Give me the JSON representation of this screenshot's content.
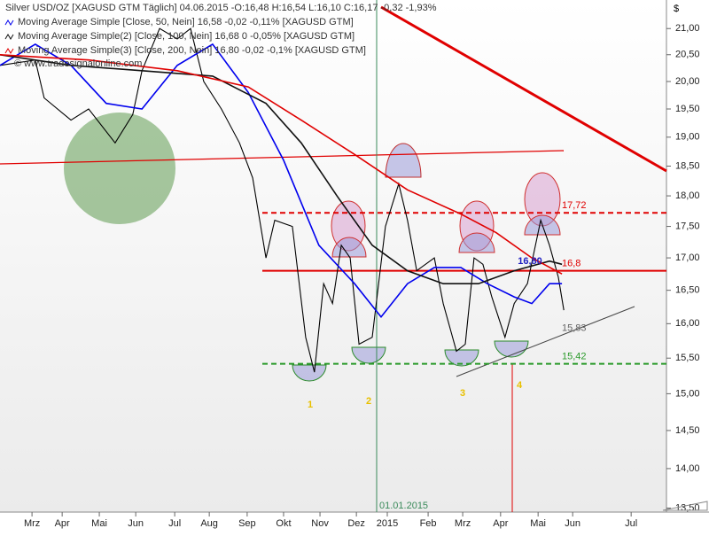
{
  "chart_data": {
    "type": "line",
    "title": "Silver USD/OZ [XAGUSD GTM  Täglich] 04.06.2015 -O:16,48 H:16,54 L:16,10 C:16,17 -0,32 -1,93%",
    "watermark": "© www.tradesignalonline.com",
    "currency": "$",
    "log_scale": true,
    "xlim": [
      0,
      18.12
    ],
    "ylim": [
      13.45,
      21.56
    ],
    "yticks": [
      {
        "value": 21,
        "label": "21,00"
      },
      {
        "value": 20.5,
        "label": "20,50"
      },
      {
        "value": 20,
        "label": "20,00"
      },
      {
        "value": 19.5,
        "label": "19,50"
      },
      {
        "value": 19,
        "label": "19,00"
      },
      {
        "value": 18.5,
        "label": "18,50"
      },
      {
        "value": 18,
        "label": "18,00"
      },
      {
        "value": 17.5,
        "label": "17,50"
      },
      {
        "value": 17,
        "label": "17,00"
      },
      {
        "value": 16.5,
        "label": "16,50"
      },
      {
        "value": 16,
        "label": "16,00"
      },
      {
        "value": 15.5,
        "label": "15,50"
      },
      {
        "value": 15,
        "label": "15,00"
      },
      {
        "value": 14.5,
        "label": "14,50"
      },
      {
        "value": 14,
        "label": "14,00"
      },
      {
        "value": 13.5,
        "label": "13,50"
      }
    ],
    "xticks": [
      {
        "value": 0.87,
        "label": "Mrz"
      },
      {
        "value": 1.69,
        "label": "Apr"
      },
      {
        "value": 2.7,
        "label": "Mai"
      },
      {
        "value": 3.69,
        "label": "Jun"
      },
      {
        "value": 4.75,
        "label": "Jul"
      },
      {
        "value": 5.69,
        "label": "Aug"
      },
      {
        "value": 6.72,
        "label": "Sep"
      },
      {
        "value": 7.71,
        "label": "Okt"
      },
      {
        "value": 8.7,
        "label": "Nov"
      },
      {
        "value": 9.69,
        "label": "Dez"
      },
      {
        "value": 10.53,
        "label": "2015"
      },
      {
        "value": 11.64,
        "label": "Feb"
      },
      {
        "value": 12.58,
        "label": "Mrz"
      },
      {
        "value": 13.61,
        "label": "Apr"
      },
      {
        "value": 14.63,
        "label": "Mai"
      },
      {
        "value": 15.57,
        "label": "Jun"
      },
      {
        "value": 17.16,
        "label": "Jul"
      }
    ],
    "series": [
      {
        "color": "#000000",
        "x": [
          0,
          0.96,
          1.2,
          1.93,
          2.41,
          3.13,
          3.61,
          3.86,
          4.34,
          4.82,
          5.18,
          5.54,
          6.02,
          6.51,
          6.87,
          7.23,
          7.47,
          7.95,
          8.31,
          8.55,
          8.8,
          9.04,
          9.28,
          9.52,
          9.76,
          10.12,
          10.48,
          10.84,
          11.08,
          11.33,
          11.81,
          12.05,
          12.41,
          12.65,
          12.89,
          13.13,
          13.37,
          13.73,
          13.98,
          14.34,
          14.7,
          14.94,
          15.18,
          15.33
        ],
        "values": [
          20.3,
          20.4,
          19.7,
          19.3,
          19.5,
          18.9,
          19.4,
          20.2,
          21.0,
          20.8,
          21.0,
          20.0,
          19.5,
          18.9,
          18.3,
          17.0,
          17.6,
          17.5,
          15.8,
          15.3,
          16.6,
          16.3,
          17.2,
          17.0,
          15.7,
          15.8,
          17.5,
          18.2,
          17.6,
          16.8,
          17.0,
          16.3,
          15.6,
          15.7,
          17.0,
          16.9,
          16.4,
          15.8,
          16.3,
          16.6,
          17.6,
          17.2,
          16.7,
          16.2
        ]
      },
      {
        "name": "Moving Average Simple [Close, 50, Nein] 16,58 -0,02 -0,11% [XAGUSD GTM]",
        "color": "#0000ee",
        "x": [
          0,
          0.96,
          1.93,
          2.89,
          3.86,
          4.82,
          5.78,
          6.75,
          7.71,
          8.67,
          9.64,
          10.36,
          11.08,
          11.81,
          12.53,
          13.25,
          13.98,
          14.46,
          14.94,
          15.28
        ],
        "values": [
          20.3,
          20.7,
          20.3,
          19.6,
          19.5,
          20.3,
          20.7,
          19.8,
          18.6,
          17.2,
          16.6,
          16.1,
          16.6,
          16.85,
          16.85,
          16.6,
          16.4,
          16.3,
          16.6,
          16.6
        ]
      },
      {
        "name": "Moving Average Simple(2) [Close, 100, Nein] 16,68 0 -0,05% [XAGUSD GTM]",
        "color": "#111111",
        "x": [
          0,
          1.93,
          3.86,
          5.78,
          7.23,
          8.19,
          9.16,
          10.12,
          11.08,
          12.05,
          13.01,
          13.98,
          14.94,
          15.28
        ],
        "values": [
          20.5,
          20.3,
          20.2,
          20.1,
          19.6,
          18.9,
          18.0,
          17.2,
          16.8,
          16.6,
          16.6,
          16.8,
          16.95,
          16.9
        ]
      },
      {
        "name": "Moving Average Simple(3) [Close, 200, Nein] 16,80 -0,02 -0,1% [XAGUSD GTM]",
        "color": "#e00000",
        "x": [
          0,
          2.41,
          4.82,
          6.75,
          8.19,
          9.64,
          11.08,
          12.53,
          13.49,
          14.46,
          15.28
        ],
        "values": [
          20.5,
          20.4,
          20.2,
          19.9,
          19.3,
          18.7,
          18.1,
          17.7,
          17.4,
          17.0,
          16.75
        ]
      }
    ],
    "levels": [
      {
        "value": 17.72,
        "label": "17,72",
        "color": "#e00000",
        "style": "dashed"
      },
      {
        "value": 16.8,
        "label": "16,8",
        "color": "#e00000",
        "style": "solid"
      },
      {
        "value": 15.83,
        "label": "15,83",
        "color": "#666666",
        "style": "none"
      },
      {
        "value": 15.42,
        "label": "15,42",
        "color": "#2a9a2a",
        "style": "dashed"
      }
    ],
    "annotations": [
      "1",
      "2",
      "3",
      "4",
      "16,80",
      "01.01.2015"
    ]
  }
}
